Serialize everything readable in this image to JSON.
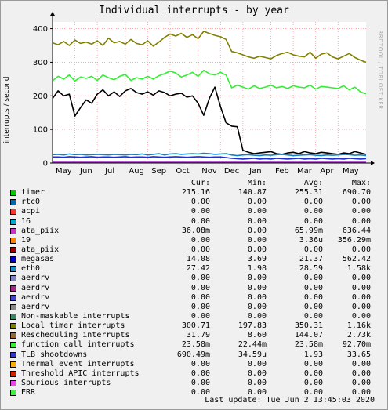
{
  "title": "Individual interrupts - by year",
  "watermark": "RRDTOOL / TOBI OETIKER",
  "chart_data": {
    "type": "line",
    "title": "Individual interrupts - by year",
    "ylabel": "interrupts / second",
    "ylim": [
      0,
      420
    ],
    "yticks": [
      0,
      100,
      200,
      300,
      400
    ],
    "xlim": [
      0,
      56
    ],
    "month_ticks": [
      {
        "label": "May",
        "x": 0
      },
      {
        "label": "Jun",
        "x": 4
      },
      {
        "label": "Jul",
        "x": 8
      },
      {
        "label": "Aug",
        "x": 13
      },
      {
        "label": "Sep",
        "x": 17
      },
      {
        "label": "Oct",
        "x": 21
      },
      {
        "label": "Nov",
        "x": 26
      },
      {
        "label": "Dec",
        "x": 30
      },
      {
        "label": "Jan",
        "x": 34
      },
      {
        "label": "Feb",
        "x": 39
      },
      {
        "label": "Mar",
        "x": 43
      },
      {
        "label": "Apr",
        "x": 47
      },
      {
        "label": "May",
        "x": 51
      }
    ],
    "grid": true,
    "series": [
      {
        "name": "Local timer interrupts",
        "color": "#808000",
        "values": [
          358,
          352,
          362,
          350,
          366,
          356,
          360,
          354,
          364,
          350,
          372,
          358,
          362,
          354,
          368,
          356,
          352,
          364,
          348,
          360,
          374,
          384,
          378,
          386,
          374,
          382,
          370,
          392,
          386,
          380,
          376,
          368,
          332,
          328,
          322,
          316,
          312,
          318,
          314,
          310,
          320,
          326,
          330,
          322,
          318,
          316,
          330,
          312,
          324,
          328,
          316,
          310,
          318,
          326,
          314,
          306,
          300
        ]
      },
      {
        "name": "function call interrupts",
        "color": "#33ee33",
        "values": [
          245,
          258,
          250,
          262,
          244,
          256,
          252,
          258,
          246,
          262,
          254,
          248,
          258,
          264,
          246,
          254,
          250,
          258,
          250,
          260,
          266,
          274,
          268,
          256,
          262,
          270,
          258,
          276,
          266,
          262,
          270,
          262,
          224,
          232,
          226,
          220,
          230,
          222,
          226,
          232,
          224,
          228,
          222,
          230,
          226,
          224,
          232,
          220,
          228,
          226,
          224,
          222,
          230,
          218,
          226,
          212,
          206
        ]
      },
      {
        "name": "megasas",
        "color": "#000000",
        "values": [
          192,
          215,
          200,
          205,
          140,
          165,
          188,
          178,
          205,
          218,
          200,
          212,
          198,
          215,
          222,
          210,
          205,
          212,
          202,
          215,
          210,
          200,
          205,
          208,
          196,
          200,
          178,
          142,
          192,
          226,
          168,
          120,
          110,
          108,
          38,
          32,
          28,
          30,
          32,
          34,
          28,
          26,
          30,
          32,
          28,
          34,
          30,
          28,
          32,
          30,
          28,
          26,
          30,
          28,
          34,
          30,
          26
        ]
      },
      {
        "name": "eth0",
        "color": "#1080c8",
        "values": [
          25,
          26,
          24,
          27,
          25,
          26,
          24,
          25,
          26,
          25,
          24,
          26,
          25,
          24,
          26,
          25,
          27,
          24,
          26,
          28,
          24,
          27,
          28,
          26,
          27,
          28,
          27,
          29,
          28,
          26,
          27,
          28,
          24,
          22,
          24,
          25,
          23,
          22,
          24,
          23,
          25,
          26,
          24,
          22,
          23,
          24,
          25,
          23,
          22,
          24,
          23,
          24,
          26,
          25,
          23,
          24,
          22
        ]
      },
      {
        "name": "TLB shootdowns",
        "color": "#2030c8",
        "values": [
          18,
          18,
          17,
          19,
          18,
          17,
          18,
          19,
          17,
          18,
          18,
          17,
          18,
          19,
          17,
          18,
          18,
          17,
          19,
          18,
          17,
          18,
          19,
          18,
          17,
          18,
          19,
          18,
          17,
          18,
          18,
          16,
          14,
          13,
          12,
          13,
          14,
          12,
          13,
          12,
          14,
          13,
          12,
          13,
          14,
          12,
          13,
          12,
          14,
          13,
          12,
          13,
          12,
          14,
          13,
          12,
          13
        ]
      },
      {
        "name": "ata_piix",
        "color": "#a020c8",
        "values": [
          2,
          2,
          2,
          2,
          2,
          2,
          2,
          2,
          2,
          2,
          2,
          2,
          2,
          2,
          2,
          2,
          2,
          2,
          2,
          2,
          2,
          2,
          2,
          2,
          2,
          2,
          2,
          2,
          2,
          2,
          2,
          2,
          2,
          2,
          2,
          2,
          2,
          2,
          2,
          2,
          2,
          2,
          2,
          2,
          2,
          2,
          2,
          2,
          2,
          2,
          2,
          2,
          2,
          2,
          2,
          2,
          2
        ]
      }
    ]
  },
  "legend": {
    "headers": {
      "cur": "Cur:",
      "min": "Min:",
      "avg": "Avg:",
      "max": "Max:"
    },
    "rows": [
      {
        "name": "timer",
        "color": "#00cc00",
        "cur": "215.16",
        "min": "140.87",
        "avg": "255.31",
        "max": "690.70"
      },
      {
        "name": "rtc0",
        "color": "#0066b3",
        "cur": "0.00",
        "min": "0.00",
        "avg": "0.00",
        "max": "0.00"
      },
      {
        "name": "acpi",
        "color": "#ff3333",
        "cur": "0.00",
        "min": "0.00",
        "avg": "0.00",
        "max": "0.00"
      },
      {
        "name": "16",
        "color": "#00aacc",
        "cur": "0.00",
        "min": "0.00",
        "avg": "0.00",
        "max": "0.00"
      },
      {
        "name": "ata_piix",
        "color": "#cc33cc",
        "cur": "36.08m",
        "min": "0.00",
        "avg": "65.99m",
        "max": "636.44"
      },
      {
        "name": "19",
        "color": "#ff8000",
        "cur": "0.00",
        "min": "0.00",
        "avg": "3.36u",
        "max": "356.29m"
      },
      {
        "name": "ata_piix",
        "color": "#990000",
        "cur": "0.00",
        "min": "0.00",
        "avg": "0.00",
        "max": "0.00"
      },
      {
        "name": "megasas",
        "color": "#0000cc",
        "cur": "14.08",
        "min": "3.69",
        "avg": "21.37",
        "max": "562.42"
      },
      {
        "name": "eth0",
        "color": "#1a8ccc",
        "cur": "27.42",
        "min": "1.98",
        "avg": "28.59",
        "max": "1.58k"
      },
      {
        "name": "aerdrv",
        "color": "#8080cc",
        "cur": "0.00",
        "min": "0.00",
        "avg": "0.00",
        "max": "0.00"
      },
      {
        "name": "aerdrv",
        "color": "#aa2288",
        "cur": "0.00",
        "min": "0.00",
        "avg": "0.00",
        "max": "0.00"
      },
      {
        "name": "aerdrv",
        "color": "#4444cc",
        "cur": "0.00",
        "min": "0.00",
        "avg": "0.00",
        "max": "0.00"
      },
      {
        "name": "aerdrv",
        "color": "#888888",
        "cur": "0.00",
        "min": "0.00",
        "avg": "0.00",
        "max": "0.00"
      },
      {
        "name": "Non-maskable interrupts",
        "color": "#338866",
        "cur": "0.00",
        "min": "0.00",
        "avg": "0.00",
        "max": "0.00"
      },
      {
        "name": "Local timer interrupts",
        "color": "#808000",
        "cur": "300.71",
        "min": "197.83",
        "avg": "350.31",
        "max": "1.16k"
      },
      {
        "name": "Rescheduling interrupts",
        "color": "#996633",
        "cur": "31.79",
        "min": "8.60",
        "avg": "144.07",
        "max": "2.73k"
      },
      {
        "name": "function call interrupts",
        "color": "#33ee33",
        "cur": "23.58m",
        "min": "22.44m",
        "avg": "23.58m",
        "max": "92.70m"
      },
      {
        "name": "TLB shootdowns",
        "color": "#3333cc",
        "cur": "690.49m",
        "min": "34.59u",
        "avg": "1.93",
        "max": "33.65"
      },
      {
        "name": "Thermal event interrupts",
        "color": "#ffaa00",
        "cur": "0.00",
        "min": "0.00",
        "avg": "0.00",
        "max": "0.00"
      },
      {
        "name": "Threshold APIC interrupts",
        "color": "#cc2200",
        "cur": "0.00",
        "min": "0.00",
        "avg": "0.00",
        "max": "0.00"
      },
      {
        "name": "Spurious interrupts",
        "color": "#ee44ee",
        "cur": "0.00",
        "min": "0.00",
        "avg": "0.00",
        "max": "0.00"
      },
      {
        "name": "ERR",
        "color": "#44ee44",
        "cur": "0.00",
        "min": "0.00",
        "avg": "0.00",
        "max": "0.00"
      }
    ]
  },
  "last_update": "Last update:  Tue Jun  2 13:45:03 2020"
}
